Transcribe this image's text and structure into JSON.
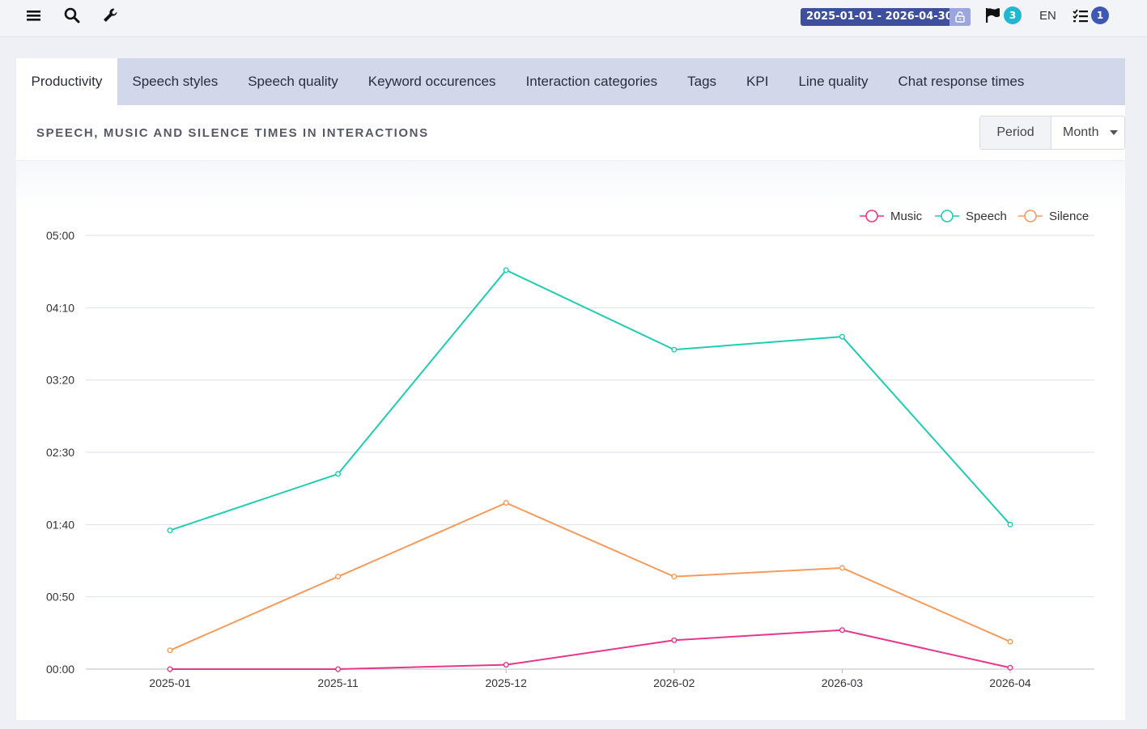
{
  "topbar": {
    "icons": [
      "menu-icon",
      "search-icon",
      "wrench-icon",
      "lock-icon",
      "flag-icon",
      "tasks-icon"
    ],
    "date_range": "2025-01-01 - 2026-04-30",
    "flag_count": "3",
    "language": "EN",
    "tasks_count": "1",
    "colors": {
      "date_chip": "#3e4f9e",
      "flag_badge": "#20b7d0",
      "tasks_badge": "#3e56b5"
    }
  },
  "tabs": [
    {
      "label": "Productivity",
      "active": true
    },
    {
      "label": "Speech styles"
    },
    {
      "label": "Speech quality"
    },
    {
      "label": "Keyword occurences"
    },
    {
      "label": "Interaction categories"
    },
    {
      "label": "Tags"
    },
    {
      "label": "KPI"
    },
    {
      "label": "Line quality"
    },
    {
      "label": "Chat response times"
    }
  ],
  "section": {
    "title": "SPEECH, MUSIC AND SILENCE TIMES IN INTERACTIONS",
    "period_label": "Period",
    "period_value": "Month"
  },
  "chart_data": {
    "type": "line",
    "categories": [
      "2025-01",
      "2025-11",
      "2025-12",
      "2026-02",
      "2026-03",
      "2026-04"
    ],
    "y_unit": "seconds",
    "yticks": [
      {
        "value": 0,
        "label": "00:00"
      },
      {
        "value": 50,
        "label": "00:50"
      },
      {
        "value": 100,
        "label": "01:40"
      },
      {
        "value": 150,
        "label": "02:30"
      },
      {
        "value": 200,
        "label": "03:20"
      },
      {
        "value": 250,
        "label": "04:10"
      },
      {
        "value": 300,
        "label": "05:00"
      }
    ],
    "ylim": [
      0,
      300
    ],
    "grid": true,
    "legend_position": "top-right",
    "series": [
      {
        "name": "Music",
        "color": "#e8368a",
        "values": [
          0,
          0,
          3,
          20,
          27,
          1
        ]
      },
      {
        "name": "Speech",
        "color": "#1ecdb3",
        "values": [
          96,
          135,
          276,
          221,
          230,
          100
        ]
      },
      {
        "name": "Silence",
        "color": "#f59b5c",
        "values": [
          13,
          64,
          115,
          64,
          70,
          19
        ]
      }
    ]
  }
}
